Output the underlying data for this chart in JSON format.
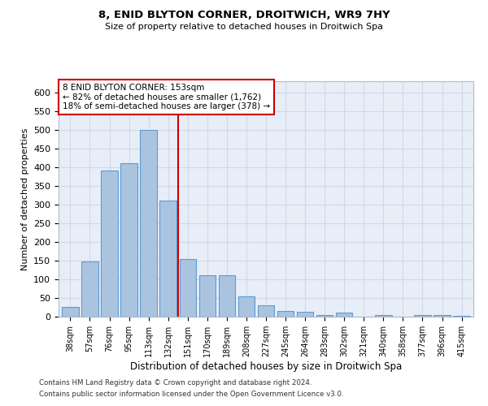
{
  "title": "8, ENID BLYTON CORNER, DROITWICH, WR9 7HY",
  "subtitle": "Size of property relative to detached houses in Droitwich Spa",
  "xlabel": "Distribution of detached houses by size in Droitwich Spa",
  "ylabel": "Number of detached properties",
  "categories": [
    "38sqm",
    "57sqm",
    "76sqm",
    "95sqm",
    "113sqm",
    "132sqm",
    "151sqm",
    "170sqm",
    "189sqm",
    "208sqm",
    "227sqm",
    "245sqm",
    "264sqm",
    "283sqm",
    "302sqm",
    "321sqm",
    "340sqm",
    "358sqm",
    "377sqm",
    "396sqm",
    "415sqm"
  ],
  "values": [
    25,
    148,
    390,
    410,
    500,
    310,
    155,
    110,
    110,
    55,
    30,
    15,
    12,
    5,
    10,
    0,
    5,
    0,
    5,
    5,
    2
  ],
  "bar_color": "#aac4e0",
  "bar_edge_color": "#5b9bd5",
  "marker_label": "8 ENID BLYTON CORNER: 153sqm",
  "annotation_line1": "← 82% of detached houses are smaller (1,762)",
  "annotation_line2": "18% of semi-detached houses are larger (378) →",
  "annotation_box_color": "#ffffff",
  "annotation_box_edge": "#cc0000",
  "vline_color": "#cc0000",
  "ylim": [
    0,
    630
  ],
  "yticks": [
    0,
    50,
    100,
    150,
    200,
    250,
    300,
    350,
    400,
    450,
    500,
    550,
    600
  ],
  "grid_color": "#d0d8e8",
  "background_color": "#e8eef8",
  "footnote1": "Contains HM Land Registry data © Crown copyright and database right 2024.",
  "footnote2": "Contains public sector information licensed under the Open Government Licence v3.0."
}
